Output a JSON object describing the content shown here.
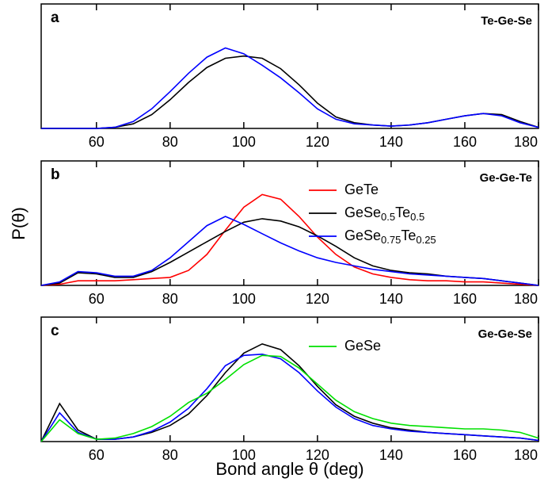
{
  "chart_data": [
    {
      "type": "line",
      "label": "a",
      "title": "Te-Ge-Se",
      "x": [
        45,
        50,
        55,
        60,
        65,
        70,
        75,
        80,
        85,
        90,
        95,
        100,
        105,
        110,
        115,
        120,
        125,
        130,
        135,
        140,
        145,
        150,
        155,
        160,
        165,
        170,
        175,
        180
      ],
      "series": [
        {
          "color": "#000000",
          "values": [
            0,
            0,
            0,
            0,
            0.01,
            0.04,
            0.12,
            0.25,
            0.4,
            0.53,
            0.61,
            0.63,
            0.61,
            0.52,
            0.38,
            0.22,
            0.1,
            0.05,
            0.03,
            0.02,
            0.03,
            0.05,
            0.08,
            0.11,
            0.13,
            0.12,
            0.06,
            0.01
          ]
        },
        {
          "color": "#0000ff",
          "values": [
            0,
            0,
            0,
            0,
            0.01,
            0.06,
            0.17,
            0.32,
            0.48,
            0.62,
            0.7,
            0.65,
            0.55,
            0.44,
            0.31,
            0.17,
            0.08,
            0.04,
            0.03,
            0.02,
            0.03,
            0.05,
            0.08,
            0.11,
            0.13,
            0.11,
            0.05,
            0.01
          ]
        }
      ],
      "xlim": [
        45,
        180
      ],
      "xticks": [
        60,
        80,
        100,
        120,
        140,
        160,
        180
      ],
      "ylim": [
        0,
        1
      ],
      "legend": false
    },
    {
      "type": "line",
      "label": "b",
      "title": "Ge-Ge-Te",
      "ylabel": "P(θ)",
      "x": [
        45,
        50,
        55,
        60,
        65,
        70,
        75,
        80,
        85,
        90,
        95,
        100,
        105,
        110,
        115,
        120,
        125,
        130,
        135,
        140,
        145,
        150,
        155,
        160,
        165,
        170,
        175,
        180
      ],
      "series": [
        {
          "name": "GeTe",
          "color": "#ff0000",
          "values": [
            0,
            0.01,
            0.04,
            0.04,
            0.04,
            0.05,
            0.06,
            0.07,
            0.13,
            0.27,
            0.48,
            0.68,
            0.79,
            0.75,
            0.6,
            0.42,
            0.27,
            0.16,
            0.1,
            0.07,
            0.05,
            0.04,
            0.04,
            0.03,
            0.03,
            0.02,
            0.01,
            0
          ]
        },
        {
          "name": "GeSe0.5Te0.5",
          "color": "#000000",
          "values": [
            0,
            0.02,
            0.11,
            0.1,
            0.07,
            0.07,
            0.12,
            0.2,
            0.29,
            0.38,
            0.47,
            0.55,
            0.58,
            0.56,
            0.51,
            0.43,
            0.34,
            0.24,
            0.17,
            0.13,
            0.11,
            0.1,
            0.08,
            0.07,
            0.06,
            0.04,
            0.02,
            0
          ]
        },
        {
          "name": "GeSe0.75Te0.25",
          "color": "#0000ff",
          "values": [
            0,
            0.03,
            0.12,
            0.11,
            0.08,
            0.08,
            0.13,
            0.24,
            0.38,
            0.52,
            0.6,
            0.53,
            0.45,
            0.37,
            0.3,
            0.24,
            0.2,
            0.17,
            0.14,
            0.12,
            0.1,
            0.09,
            0.08,
            0.07,
            0.06,
            0.04,
            0.02,
            0
          ]
        }
      ],
      "xlim": [
        45,
        180
      ],
      "xticks": [
        60,
        80,
        100,
        120,
        140,
        160,
        180
      ],
      "ylim": [
        0,
        1
      ],
      "legend": true
    },
    {
      "type": "line",
      "label": "c",
      "title": "Ge-Ge-Se",
      "xlabel": "Bond angle θ (deg)",
      "x": [
        45,
        50,
        55,
        60,
        65,
        70,
        75,
        80,
        85,
        90,
        95,
        100,
        105,
        110,
        115,
        120,
        125,
        130,
        135,
        140,
        145,
        150,
        155,
        160,
        165,
        170,
        175,
        180
      ],
      "series": [
        {
          "color": "#000000",
          "values": [
            0,
            0.33,
            0.1,
            0.02,
            0.02,
            0.04,
            0.08,
            0.14,
            0.24,
            0.4,
            0.6,
            0.77,
            0.85,
            0.8,
            0.66,
            0.48,
            0.32,
            0.22,
            0.16,
            0.12,
            0.1,
            0.08,
            0.07,
            0.06,
            0.05,
            0.04,
            0.03,
            0.01
          ]
        },
        {
          "color": "#0000ff",
          "values": [
            0,
            0.25,
            0.08,
            0.02,
            0.02,
            0.04,
            0.09,
            0.17,
            0.29,
            0.46,
            0.66,
            0.75,
            0.76,
            0.72,
            0.6,
            0.44,
            0.3,
            0.2,
            0.14,
            0.11,
            0.09,
            0.08,
            0.07,
            0.06,
            0.05,
            0.04,
            0.03,
            0.01
          ]
        },
        {
          "name": "GeSe",
          "color": "#00e000",
          "values": [
            0,
            0.19,
            0.07,
            0.02,
            0.03,
            0.07,
            0.13,
            0.22,
            0.34,
            0.42,
            0.54,
            0.67,
            0.75,
            0.74,
            0.64,
            0.5,
            0.36,
            0.26,
            0.2,
            0.16,
            0.14,
            0.13,
            0.12,
            0.11,
            0.11,
            0.1,
            0.08,
            0.03
          ]
        }
      ],
      "xlim": [
        45,
        180
      ],
      "xticks": [
        60,
        80,
        100,
        120,
        140,
        160,
        180
      ],
      "ylim": [
        0,
        1
      ],
      "legend": true
    }
  ]
}
